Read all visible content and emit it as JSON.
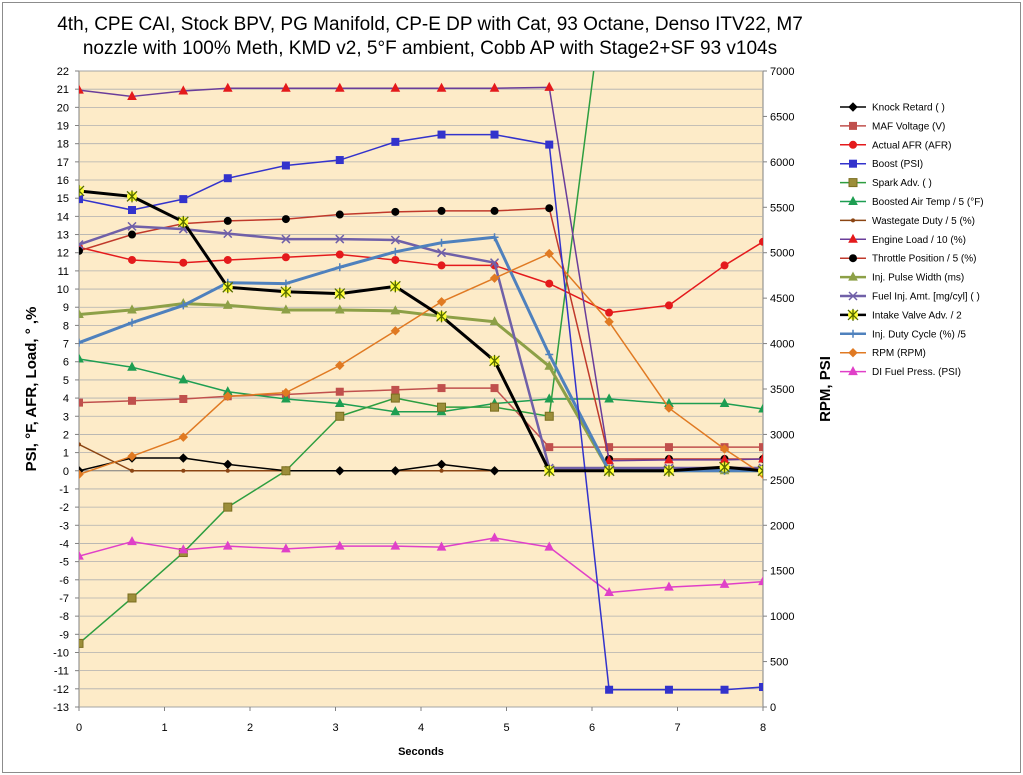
{
  "chart_data": {
    "type": "line",
    "title_line1": "4th, CPE CAI, Stock BPV, PG Manifold, CP-E DP with Cat, 93 Octane, Denso ITV22, M7",
    "title_line2": "nozzle with 100% Meth, KMD v2, 5°F ambient, Cobb AP with Stage2+SF 93 v104s",
    "xlabel": "Seconds",
    "ylabel_left": "PSI, °F, AFR, Load, ° ,%",
    "ylabel_right": "RPM, PSI",
    "xlim": [
      0,
      8
    ],
    "ylim_left": [
      -13,
      22
    ],
    "ylim_right": [
      0,
      7000
    ],
    "x_ticks": [
      0,
      1,
      2,
      3,
      4,
      5,
      6,
      7,
      8
    ],
    "y_left_ticks": [
      -13,
      -12,
      -11,
      -10,
      -9,
      -8,
      -7,
      -6,
      -5,
      -4,
      -3,
      -2,
      -1,
      0,
      1,
      2,
      3,
      4,
      5,
      6,
      7,
      8,
      9,
      10,
      11,
      12,
      13,
      14,
      15,
      16,
      17,
      18,
      19,
      20,
      21,
      22
    ],
    "y_right_ticks": [
      0,
      500,
      1000,
      1500,
      2000,
      2500,
      3000,
      3500,
      4000,
      4500,
      5000,
      5500,
      6000,
      6500,
      7000
    ],
    "grid": "horizontal",
    "legend_position": "right",
    "plot_background": "#FDEBC8",
    "series": [
      {
        "name": "Knock Retard ( )",
        "color": "#000000",
        "marker": "diamond",
        "axis": "left",
        "width": 1.5,
        "points": [
          [
            0,
            0
          ],
          [
            0.62,
            0.7
          ],
          [
            1.22,
            0.7
          ],
          [
            1.74,
            0.35
          ],
          [
            2.42,
            0
          ],
          [
            3.05,
            0
          ],
          [
            3.7,
            0
          ],
          [
            4.24,
            0.35
          ],
          [
            4.86,
            0
          ],
          [
            5.5,
            0
          ],
          [
            6.2,
            0
          ],
          [
            6.9,
            0
          ],
          [
            7.55,
            0.1
          ],
          [
            8,
            0.1
          ]
        ]
      },
      {
        "name": "MAF Voltage  (V)",
        "color": "#C0504D",
        "marker": "square",
        "axis": "left",
        "width": 1.5,
        "points": [
          [
            0,
            3.75
          ],
          [
            0.62,
            3.85
          ],
          [
            1.22,
            3.95
          ],
          [
            1.74,
            4.1
          ],
          [
            2.42,
            4.2
          ],
          [
            3.05,
            4.35
          ],
          [
            3.7,
            4.45
          ],
          [
            4.24,
            4.55
          ],
          [
            4.86,
            4.55
          ],
          [
            5.5,
            1.3
          ],
          [
            6.2,
            1.3
          ],
          [
            6.9,
            1.3
          ],
          [
            7.55,
            1.3
          ],
          [
            8,
            1.3
          ]
        ]
      },
      {
        "name": "Actual AFR (AFR)",
        "color": "#E41A1C",
        "marker": "circle",
        "axis": "left",
        "width": 1.5,
        "points": [
          [
            0,
            12.3
          ],
          [
            0.62,
            11.6
          ],
          [
            1.22,
            11.45
          ],
          [
            1.74,
            11.6
          ],
          [
            2.42,
            11.75
          ],
          [
            3.05,
            11.9
          ],
          [
            3.7,
            11.6
          ],
          [
            4.24,
            11.3
          ],
          [
            4.86,
            11.3
          ],
          [
            5.5,
            10.3
          ],
          [
            6.2,
            8.7
          ],
          [
            6.9,
            9.1
          ],
          [
            7.55,
            11.3
          ],
          [
            8,
            12.6
          ]
        ]
      },
      {
        "name": "Boost (PSI)",
        "color": "#3333CC",
        "marker": "square",
        "axis": "left",
        "width": 1.5,
        "points": [
          [
            0,
            14.95
          ],
          [
            0.62,
            14.35
          ],
          [
            1.22,
            14.95
          ],
          [
            1.74,
            16.1
          ],
          [
            2.42,
            16.8
          ],
          [
            3.05,
            17.1
          ],
          [
            3.7,
            18.1
          ],
          [
            4.24,
            18.5
          ],
          [
            4.86,
            18.5
          ],
          [
            5.5,
            17.95
          ],
          [
            6.2,
            -12.05
          ],
          [
            6.9,
            -12.05
          ],
          [
            7.55,
            -12.05
          ],
          [
            8,
            -11.9
          ]
        ]
      },
      {
        "name": "Spark Adv. ( )",
        "color": "#2E9E40",
        "marker": "square-olive",
        "axis": "left",
        "width": 1.5,
        "points": [
          [
            0,
            -9.5
          ],
          [
            0.62,
            -7.0
          ],
          [
            1.22,
            -4.5
          ],
          [
            1.74,
            -2.0
          ],
          [
            2.42,
            0
          ],
          [
            3.05,
            3.0
          ],
          [
            3.7,
            4.0
          ],
          [
            4.24,
            3.5
          ],
          [
            4.86,
            3.5
          ],
          [
            5.5,
            3.0
          ],
          [
            6.02,
            22.0
          ]
        ]
      },
      {
        "name": "Boosted Air Temp / 5 (°F)",
        "color": "#1E9E52",
        "marker": "triangle",
        "axis": "left",
        "width": 1.5,
        "points": [
          [
            0,
            6.15
          ],
          [
            0.62,
            5.7
          ],
          [
            1.22,
            5.0
          ],
          [
            1.74,
            4.35
          ],
          [
            2.42,
            3.95
          ],
          [
            3.05,
            3.7
          ],
          [
            3.7,
            3.25
          ],
          [
            4.24,
            3.25
          ],
          [
            4.86,
            3.7
          ],
          [
            5.5,
            3.95
          ],
          [
            6.2,
            3.95
          ],
          [
            6.9,
            3.7
          ],
          [
            7.55,
            3.7
          ],
          [
            8,
            3.4
          ]
        ]
      },
      {
        "name": "Wastegate Duty / 5 (%)",
        "color": "#8B4513",
        "marker": "dot",
        "axis": "left",
        "width": 1.5,
        "points": [
          [
            0,
            1.45
          ],
          [
            0.62,
            0
          ],
          [
            1.22,
            0
          ],
          [
            1.74,
            0
          ],
          [
            2.42,
            0
          ],
          [
            3.05,
            0
          ],
          [
            3.7,
            0
          ],
          [
            4.24,
            0
          ],
          [
            4.86,
            0
          ],
          [
            5.5,
            0
          ],
          [
            6.2,
            0
          ],
          [
            6.9,
            0
          ],
          [
            7.55,
            0
          ],
          [
            8,
            0
          ]
        ]
      },
      {
        "name": "Engine Load / 10 (%)",
        "color": "#6A3D9A",
        "marker": "triangle-red",
        "axis": "left",
        "width": 1.5,
        "points": [
          [
            0,
            20.95
          ],
          [
            0.62,
            20.6
          ],
          [
            1.22,
            20.9
          ],
          [
            1.74,
            21.05
          ],
          [
            2.42,
            21.05
          ],
          [
            3.05,
            21.05
          ],
          [
            3.7,
            21.05
          ],
          [
            4.24,
            21.05
          ],
          [
            4.86,
            21.05
          ],
          [
            5.5,
            21.1
          ],
          [
            6.2,
            0.55
          ],
          [
            6.9,
            0.6
          ],
          [
            7.55,
            0.6
          ],
          [
            8,
            0.65
          ]
        ]
      },
      {
        "name": "Throttle Position / 5 (%)",
        "color": "#C0392B",
        "marker": "circle-black",
        "axis": "left",
        "width": 1.5,
        "points": [
          [
            0,
            12.1
          ],
          [
            0.62,
            13.0
          ],
          [
            1.22,
            13.6
          ],
          [
            1.74,
            13.75
          ],
          [
            2.42,
            13.85
          ],
          [
            3.05,
            14.1
          ],
          [
            3.7,
            14.25
          ],
          [
            4.24,
            14.3
          ],
          [
            4.86,
            14.3
          ],
          [
            5.5,
            14.45
          ],
          [
            6.2,
            0.65
          ],
          [
            6.9,
            0.65
          ],
          [
            7.55,
            0.65
          ],
          [
            8,
            0.65
          ]
        ]
      },
      {
        "name": "Inj. Pulse Width (ms)",
        "color": "#8DA047",
        "marker": "triangle",
        "axis": "left",
        "width": 3,
        "points": [
          [
            0,
            8.6
          ],
          [
            0.62,
            8.85
          ],
          [
            1.22,
            9.2
          ],
          [
            1.74,
            9.1
          ],
          [
            2.42,
            8.85
          ],
          [
            3.05,
            8.85
          ],
          [
            3.7,
            8.8
          ],
          [
            4.24,
            8.5
          ],
          [
            4.86,
            8.2
          ],
          [
            5.5,
            5.75
          ],
          [
            6.2,
            0
          ],
          [
            6.9,
            0
          ],
          [
            7.55,
            0
          ],
          [
            8,
            0
          ]
        ]
      },
      {
        "name": "Fuel Inj. Amt. [mg/cyl] ( )",
        "color": "#7060A8",
        "marker": "x",
        "axis": "left",
        "width": 2.5,
        "points": [
          [
            0,
            12.45
          ],
          [
            0.62,
            13.45
          ],
          [
            1.22,
            13.3
          ],
          [
            1.74,
            13.05
          ],
          [
            2.42,
            12.75
          ],
          [
            3.05,
            12.75
          ],
          [
            3.7,
            12.7
          ],
          [
            4.24,
            12.0
          ],
          [
            4.86,
            11.45
          ],
          [
            5.5,
            0.15
          ],
          [
            6.2,
            0.15
          ],
          [
            6.9,
            0.15
          ],
          [
            7.55,
            0.15
          ],
          [
            8,
            0.15
          ]
        ]
      },
      {
        "name": "Intake Valve Adv. / 2",
        "color": "#000000",
        "marker": "star",
        "axis": "left",
        "width": 3,
        "points": [
          [
            0,
            15.4
          ],
          [
            0.62,
            15.1
          ],
          [
            1.22,
            13.7
          ],
          [
            1.74,
            10.1
          ],
          [
            2.42,
            9.85
          ],
          [
            3.05,
            9.75
          ],
          [
            3.7,
            10.15
          ],
          [
            4.24,
            8.5
          ],
          [
            4.86,
            6.05
          ],
          [
            5.5,
            0
          ],
          [
            6.2,
            0
          ],
          [
            6.9,
            0
          ],
          [
            7.55,
            0.2
          ],
          [
            8,
            0
          ]
        ]
      },
      {
        "name": "Inj. Duty Cycle (%) /5",
        "color": "#4F81BD",
        "marker": "plus",
        "axis": "left",
        "width": 3,
        "points": [
          [
            0,
            7.05
          ],
          [
            0.62,
            8.15
          ],
          [
            1.22,
            9.1
          ],
          [
            1.74,
            10.35
          ],
          [
            2.42,
            10.3
          ],
          [
            3.05,
            11.2
          ],
          [
            3.7,
            12.05
          ],
          [
            4.24,
            12.55
          ],
          [
            4.86,
            12.85
          ],
          [
            5.5,
            6.4
          ],
          [
            6.2,
            0
          ],
          [
            6.9,
            0
          ],
          [
            7.55,
            0
          ],
          [
            8,
            0
          ]
        ]
      },
      {
        "name": "RPM (RPM)",
        "color": "#E07A23",
        "marker": "diamond",
        "axis": "right",
        "width": 1.5,
        "points": [
          [
            0,
            2560
          ],
          [
            0.62,
            2760
          ],
          [
            1.22,
            2970
          ],
          [
            1.74,
            3420
          ],
          [
            2.42,
            3460
          ],
          [
            3.05,
            3760
          ],
          [
            3.7,
            4140
          ],
          [
            4.24,
            4460
          ],
          [
            4.86,
            4720
          ],
          [
            5.5,
            4990
          ],
          [
            6.2,
            4240
          ],
          [
            6.9,
            3290
          ],
          [
            7.55,
            2840
          ],
          [
            8,
            2560
          ]
        ]
      },
      {
        "name": "DI Fuel Press. (PSI)",
        "color": "#E040C8",
        "marker": "triangle",
        "axis": "left",
        "width": 1.5,
        "points": [
          [
            0,
            -4.7
          ],
          [
            0.62,
            -3.9
          ],
          [
            1.22,
            -4.35
          ],
          [
            1.74,
            -4.15
          ],
          [
            2.42,
            -4.3
          ],
          [
            3.05,
            -4.15
          ],
          [
            3.7,
            -4.15
          ],
          [
            4.24,
            -4.2
          ],
          [
            4.86,
            -3.7
          ],
          [
            5.5,
            -4.2
          ],
          [
            6.2,
            -6.7
          ],
          [
            6.9,
            -6.4
          ],
          [
            7.55,
            -6.25
          ],
          [
            8,
            -6.1
          ]
        ]
      }
    ]
  }
}
